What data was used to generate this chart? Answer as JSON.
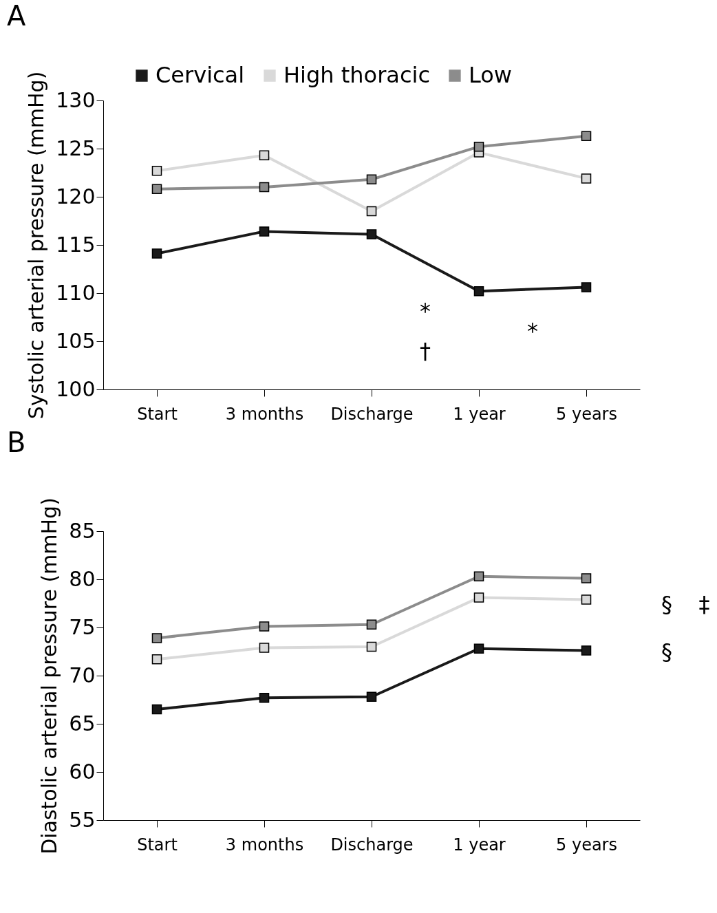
{
  "chart_data": [
    {
      "type": "line",
      "title": "A",
      "ylabel": "Systolic arterial pressure (mmHg)",
      "categories": [
        "Start",
        "3 months",
        "Discharge",
        "1 year",
        "5 years"
      ],
      "ylim": [
        100,
        130
      ],
      "yticks": [
        100,
        105,
        110,
        115,
        120,
        125,
        130
      ],
      "grid": false,
      "legend": "top",
      "marker": "square",
      "line_style": "solid",
      "series": [
        {
          "name": "Cervical",
          "color": "#1a1a1a",
          "values": [
            114.1,
            116.4,
            116.1,
            110.2,
            110.6
          ]
        },
        {
          "name": "High thoracic",
          "color": "#d9d9d9",
          "values": [
            122.7,
            124.3,
            118.5,
            124.6,
            121.9
          ]
        },
        {
          "name": "Low",
          "color": "#8c8c8c",
          "values": [
            120.8,
            121.0,
            121.8,
            125.2,
            126.3
          ]
        }
      ],
      "annotations": [
        "*",
        "†",
        "*"
      ]
    },
    {
      "type": "line",
      "title": "B",
      "ylabel": "Diastolic arterial pressure (mmHg)",
      "categories": [
        "Start",
        "3 months",
        "Discharge",
        "1 year",
        "5 years"
      ],
      "ylim": [
        55,
        85
      ],
      "yticks": [
        55,
        60,
        65,
        70,
        75,
        80,
        85
      ],
      "grid": false,
      "legend": "top",
      "marker": "square",
      "line_style": "solid",
      "series": [
        {
          "name": "Cervical",
          "color": "#1a1a1a",
          "values": [
            66.5,
            67.7,
            67.8,
            72.8,
            72.6
          ]
        },
        {
          "name": "High thoracic",
          "color": "#d9d9d9",
          "values": [
            71.7,
            72.9,
            73.0,
            78.1,
            77.9
          ]
        },
        {
          "name": "Low",
          "color": "#8c8c8c",
          "values": [
            73.9,
            75.1,
            75.3,
            80.3,
            80.1
          ]
        }
      ],
      "annotations": [
        "§",
        "‡",
        "§"
      ]
    }
  ]
}
